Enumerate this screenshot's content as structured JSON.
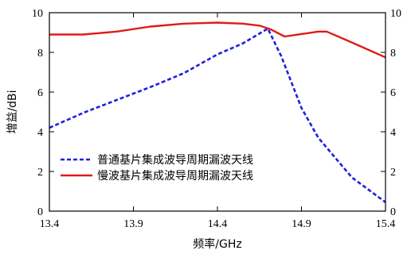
{
  "chart_data": {
    "type": "line",
    "title": "",
    "xlabel": "频率/GHz",
    "ylabel": "增益/dBi",
    "xlim": [
      13.4,
      15.4
    ],
    "ylim": [
      0,
      10
    ],
    "x_ticks": [
      "13.4",
      "13.9",
      "14.4",
      "14.9",
      "15.4"
    ],
    "y_ticks": [
      "0",
      "2",
      "4",
      "6",
      "8",
      "10"
    ],
    "right_y_ticks": [
      "0",
      "2",
      "4",
      "6",
      "8",
      "10"
    ],
    "grid": false,
    "legend_position": "lower-left",
    "series": [
      {
        "name": "普通基片集成波导周期漏波天线",
        "color": "#1f1fe0",
        "style": "dashed",
        "x": [
          13.4,
          13.6,
          13.8,
          14.0,
          14.2,
          14.4,
          14.55,
          14.7,
          14.78,
          14.9,
          15.0,
          15.2,
          15.4
        ],
        "y": [
          4.2,
          4.95,
          5.6,
          6.25,
          6.95,
          7.9,
          8.45,
          9.2,
          7.8,
          5.2,
          3.7,
          1.7,
          0.45
        ]
      },
      {
        "name": "慢波基片集成波导周期漏波天线",
        "color": "#e01a1a",
        "style": "solid",
        "x": [
          13.4,
          13.6,
          13.8,
          14.0,
          14.2,
          14.4,
          14.55,
          14.65,
          14.72,
          14.8,
          15.0,
          15.05,
          15.2,
          15.4
        ],
        "y": [
          8.9,
          8.9,
          9.05,
          9.3,
          9.45,
          9.5,
          9.45,
          9.35,
          9.15,
          8.8,
          9.05,
          9.05,
          8.5,
          7.75
        ]
      }
    ]
  }
}
